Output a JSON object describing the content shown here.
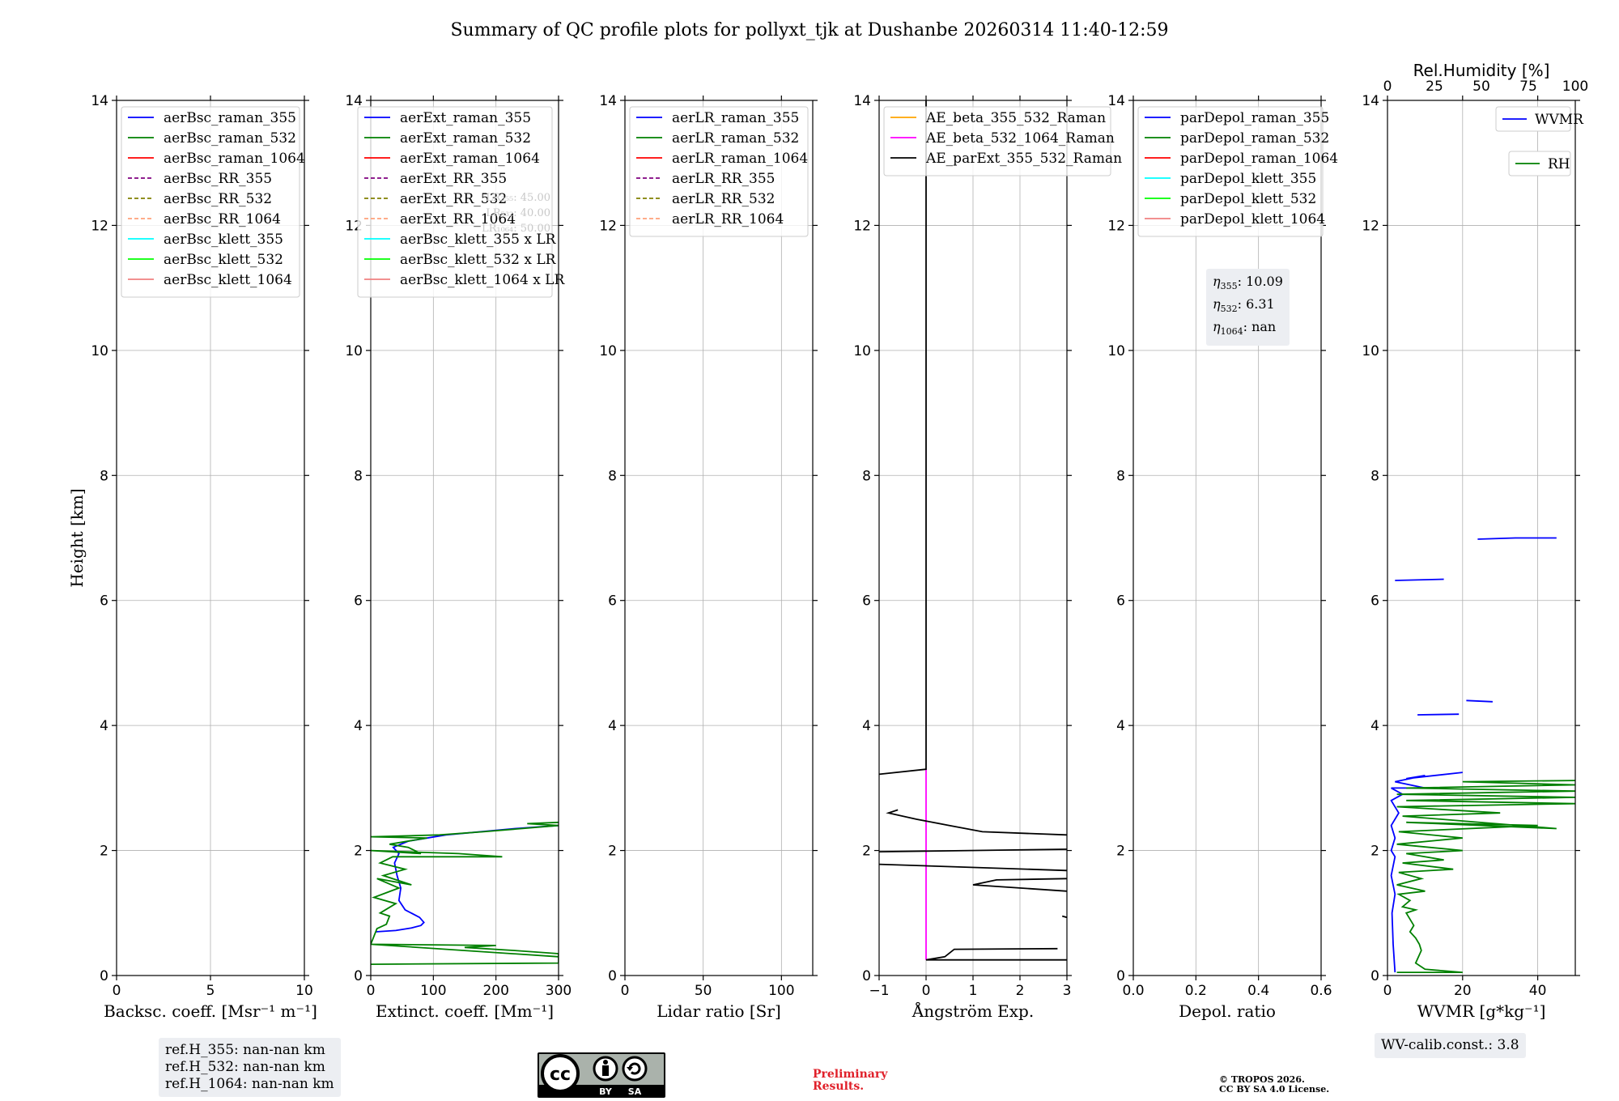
{
  "figure_title": "Summary of QC profile plots for pollyxt_tjk at Dushanbe 20260314 11:40-12:59",
  "colors": {
    "blue": "#0000ff",
    "green": "#008000",
    "red": "#ff0000",
    "purple": "#800080",
    "olive": "#808000",
    "salmon": "#ffa07a",
    "cyan": "#00ffff",
    "lime": "#00ff00",
    "lightred": "#f08080",
    "orange": "#ffa500",
    "magenta": "#ff00ff",
    "black": "#000000"
  },
  "chart_data": [
    {
      "id": "bsc",
      "type": "line",
      "xlabel": "Backsc. coeff. [Msr⁻¹ m⁻¹]",
      "ylabel": "Height [km]",
      "xlim": [
        0,
        10
      ],
      "ylim": [
        0,
        14
      ],
      "xticks": [
        0,
        5,
        10
      ],
      "yticks": [
        0,
        2,
        4,
        6,
        8,
        10,
        12,
        14
      ],
      "legend": {
        "loc": "top-left",
        "entries": [
          {
            "label": "aerBsc_raman_355",
            "color": "#0000ff",
            "dash": false
          },
          {
            "label": "aerBsc_raman_532",
            "color": "#008000",
            "dash": false
          },
          {
            "label": "aerBsc_raman_1064",
            "color": "#ff0000",
            "dash": false
          },
          {
            "label": "aerBsc_RR_355",
            "color": "#800080",
            "dash": true
          },
          {
            "label": "aerBsc_RR_532",
            "color": "#808000",
            "dash": true
          },
          {
            "label": "aerBsc_RR_1064",
            "color": "#ffa07a",
            "dash": true
          },
          {
            "label": "aerBsc_klett_355",
            "color": "#00ffff",
            "dash": false
          },
          {
            "label": "aerBsc_klett_532",
            "color": "#00ff00",
            "dash": false
          },
          {
            "label": "aerBsc_klett_1064",
            "color": "#f08080",
            "dash": false
          }
        ]
      },
      "series": []
    },
    {
      "id": "ext",
      "type": "line",
      "xlabel": "Extinct. coeff. [Mm⁻¹]",
      "xlim": [
        0,
        300
      ],
      "ylim": [
        0,
        14
      ],
      "xticks": [
        0,
        100,
        200,
        300
      ],
      "yticks": [
        0,
        2,
        4,
        6,
        8,
        10,
        12,
        14
      ],
      "legend": {
        "loc": "top-right",
        "entries": [
          {
            "label": "aerExt_raman_355",
            "color": "#0000ff",
            "dash": false
          },
          {
            "label": "aerExt_raman_532",
            "color": "#008000",
            "dash": false
          },
          {
            "label": "aerExt_raman_1064",
            "color": "#ff0000",
            "dash": false
          },
          {
            "label": "aerExt_RR_355",
            "color": "#800080",
            "dash": true
          },
          {
            "label": "aerExt_RR_532",
            "color": "#808000",
            "dash": true
          },
          {
            "label": "aerExt_RR_1064",
            "color": "#ffa07a",
            "dash": true
          },
          {
            "label": "aerBsc_klett_355 x LR",
            "color": "#00ffff",
            "dash": false
          },
          {
            "label": "aerBsc_klett_532 x LR",
            "color": "#00ff00",
            "dash": false
          },
          {
            "label": "aerBsc_klett_1064 x LR",
            "color": "#f08080",
            "dash": false
          }
        ]
      },
      "annotations": [
        "LR₃₅₅: 45.00",
        "LR₅₃₂: 40.00",
        "LR₁₀₆₄: 50.00"
      ],
      "series": [
        {
          "name": "aerExt_raman_355",
          "color": "#0000ff",
          "points": [
            [
              8,
              0.7
            ],
            [
              40,
              0.72
            ],
            [
              65,
              0.76
            ],
            [
              80,
              0.8
            ],
            [
              85,
              0.85
            ],
            [
              78,
              0.93
            ],
            [
              55,
              1.05
            ],
            [
              45,
              1.2
            ],
            [
              48,
              1.4
            ],
            [
              42,
              1.6
            ],
            [
              38,
              1.8
            ],
            [
              45,
              1.95
            ],
            [
              36,
              2.05
            ],
            [
              60,
              2.15
            ],
            [
              120,
              2.25
            ],
            [
              230,
              2.35
            ],
            [
              300,
              2.4
            ]
          ]
        },
        {
          "name": "aerExt_raman_532",
          "color": "#008000",
          "points": [
            [
              0,
              0.18
            ],
            [
              300,
              0.2
            ],
            [
              300,
              0.35
            ],
            [
              230,
              0.4
            ],
            [
              150,
              0.45
            ],
            [
              200,
              0.48
            ],
            [
              0,
              0.5
            ],
            [
              300,
              0.3
            ],
            [
              0,
              0.5
            ],
            [
              10,
              0.75
            ],
            [
              25,
              0.82
            ],
            [
              30,
              0.95
            ],
            [
              15,
              1.0
            ],
            [
              40,
              1.15
            ],
            [
              5,
              1.25
            ],
            [
              45,
              1.4
            ],
            [
              10,
              1.55
            ],
            [
              65,
              1.45
            ],
            [
              20,
              1.6
            ],
            [
              55,
              1.7
            ],
            [
              15,
              1.8
            ],
            [
              35,
              1.9
            ],
            [
              210,
              1.9
            ],
            [
              140,
              1.95
            ],
            [
              0,
              2.0
            ],
            [
              80,
              1.95
            ],
            [
              60,
              2.05
            ],
            [
              30,
              2.1
            ],
            [
              90,
              2.2
            ],
            [
              0,
              2.22
            ],
            [
              110,
              2.25
            ],
            [
              180,
              2.3
            ],
            [
              300,
              2.4
            ],
            [
              250,
              2.43
            ],
            [
              300,
              2.45
            ]
          ]
        }
      ]
    },
    {
      "id": "lr",
      "type": "line",
      "xlabel": "Lidar ratio [Sr]",
      "xlim": [
        0,
        120
      ],
      "ylim": [
        0,
        14
      ],
      "xticks": [
        0,
        50,
        100
      ],
      "yticks": [
        0,
        2,
        4,
        6,
        8,
        10,
        12,
        14
      ],
      "legend": {
        "loc": "top-right",
        "entries": [
          {
            "label": "aerLR_raman_355",
            "color": "#0000ff",
            "dash": false
          },
          {
            "label": "aerLR_raman_532",
            "color": "#008000",
            "dash": false
          },
          {
            "label": "aerLR_raman_1064",
            "color": "#ff0000",
            "dash": false
          },
          {
            "label": "aerLR_RR_355",
            "color": "#800080",
            "dash": true
          },
          {
            "label": "aerLR_RR_532",
            "color": "#808000",
            "dash": true
          },
          {
            "label": "aerLR_RR_1064",
            "color": "#ffa07a",
            "dash": true
          }
        ]
      },
      "series": []
    },
    {
      "id": "ae",
      "type": "line",
      "xlabel": "Ångström Exp.",
      "xlim": [
        -1,
        3
      ],
      "ylim": [
        0,
        14
      ],
      "xticks": [
        -1,
        0,
        1,
        2,
        3
      ],
      "xticklabels": [
        "−1",
        "0",
        "1",
        "2",
        "3"
      ],
      "yticks": [
        0,
        2,
        4,
        6,
        8,
        10,
        12,
        14
      ],
      "legend": {
        "loc": "top-left",
        "entries": [
          {
            "label": "AE_beta_355_532_Raman",
            "color": "#ffa500",
            "dash": false
          },
          {
            "label": "AE_beta_532_1064_Raman",
            "color": "#ff00ff",
            "dash": false
          },
          {
            "label": "AE_parExt_355_532_Raman",
            "color": "#000000",
            "dash": false
          }
        ]
      },
      "series": [
        {
          "name": "AE_beta_532_1064_Raman",
          "color": "#ff00ff",
          "points": [
            [
              0,
              0.25
            ],
            [
              0,
              3.3
            ]
          ]
        },
        {
          "name": "AE_parExt_355_532_Raman",
          "color": "#000000",
          "points": [
            [
              3.0,
              0.25
            ],
            [
              0,
              0.25
            ],
            [
              0.4,
              0.3
            ],
            [
              0.6,
              0.42
            ],
            [
              2.8,
              0.43
            ]
          ]
        },
        {
          "name": "AE_parExt_355_532_Raman b",
          "color": "#000000",
          "points": [
            [
              2.9,
              0.95
            ],
            [
              3.0,
              0.93
            ]
          ]
        },
        {
          "name": "AE_parExt_355_532_Raman c",
          "color": "#000000",
          "points": [
            [
              3.0,
              1.35
            ],
            [
              1.0,
              1.45
            ],
            [
              1.5,
              1.53
            ],
            [
              3.0,
              1.55
            ]
          ]
        },
        {
          "name": "AE_parExt_355_532_Raman d",
          "color": "#000000",
          "points": [
            [
              3.0,
              1.68
            ],
            [
              -1,
              1.78
            ]
          ]
        },
        {
          "name": "AE_parExt_355_532_Raman e",
          "color": "#000000",
          "points": [
            [
              -1,
              1.98
            ],
            [
              3.0,
              2.02
            ]
          ]
        },
        {
          "name": "AE_parExt_355_532_Raman f",
          "color": "#000000",
          "points": [
            [
              3.0,
              2.25
            ],
            [
              1.2,
              2.3
            ],
            [
              0.5,
              2.4
            ],
            [
              -0.2,
              2.5
            ],
            [
              -0.8,
              2.6
            ],
            [
              -0.6,
              2.65
            ]
          ]
        },
        {
          "name": "AE_parExt_355_532_Raman g",
          "color": "#000000",
          "points": [
            [
              -1,
              3.22
            ],
            [
              0,
              3.3
            ],
            [
              0,
              14
            ]
          ]
        }
      ]
    },
    {
      "id": "depol",
      "type": "line",
      "xlabel": "Depol. ratio",
      "xlim": [
        0,
        0.6
      ],
      "ylim": [
        0,
        14
      ],
      "xticks": [
        0,
        0.2,
        0.4,
        0.6
      ],
      "xticklabels": [
        "0.0",
        "0.2",
        "0.4",
        "0.6"
      ],
      "yticks": [
        0,
        2,
        4,
        6,
        8,
        10,
        12,
        14
      ],
      "legend": {
        "loc": "top-left",
        "entries": [
          {
            "label": "parDepol_raman_355",
            "color": "#0000ff",
            "dash": false
          },
          {
            "label": "parDepol_raman_532",
            "color": "#008000",
            "dash": false
          },
          {
            "label": "parDepol_raman_1064",
            "color": "#ff0000",
            "dash": false
          },
          {
            "label": "parDepol_klett_355",
            "color": "#00ffff",
            "dash": false
          },
          {
            "label": "parDepol_klett_532",
            "color": "#00ff00",
            "dash": false
          },
          {
            "label": "parDepol_klett_1064",
            "color": "#f08080",
            "dash": false
          }
        ]
      },
      "eta": {
        "eta355": "10.09",
        "eta532": "6.31",
        "eta1064": "nan"
      },
      "series": []
    },
    {
      "id": "wv",
      "type": "line",
      "xlabel": "WVMR [g*kg⁻¹]",
      "toplabel": "Rel.Humidity [%]",
      "xlim": [
        0,
        50
      ],
      "ylim": [
        0,
        14
      ],
      "xticks": [
        0,
        20,
        40
      ],
      "yticks": [
        0,
        2,
        4,
        6,
        8,
        10,
        12,
        14
      ],
      "top_xlim": [
        0,
        100
      ],
      "top_xticks": [
        0,
        25,
        50,
        75,
        100
      ],
      "legend": {
        "loc": "top-right",
        "entries": [
          {
            "label": "WVMR",
            "color": "#0000ff",
            "dash": false
          },
          {
            "label": "RH",
            "color": "#008000",
            "dash": false
          }
        ]
      },
      "series": [
        {
          "name": "WVMR",
          "color": "#0000ff",
          "points": [
            [
              2,
              0.05
            ],
            [
              1.5,
              0.5
            ],
            [
              1.2,
              1.0
            ],
            [
              2.0,
              1.3
            ],
            [
              1.0,
              1.6
            ],
            [
              2.0,
              1.9
            ],
            [
              1.0,
              2.0
            ],
            [
              2.0,
              2.2
            ],
            [
              1.0,
              2.4
            ],
            [
              3.0,
              2.6
            ],
            [
              1.0,
              2.8
            ],
            [
              4.0,
              2.9
            ],
            [
              1.0,
              3.0
            ],
            [
              10,
              3.0
            ],
            [
              2.0,
              3.1
            ],
            [
              10,
              3.2
            ],
            [
              5.0,
              3.15
            ],
            [
              20,
              3.25
            ]
          ]
        },
        {
          "name": "WVMR b",
          "color": "#0000ff",
          "points": [
            [
              8,
              4.17
            ],
            [
              19,
              4.18
            ]
          ]
        },
        {
          "name": "WVMR c",
          "color": "#0000ff",
          "points": [
            [
              21,
              4.4
            ],
            [
              28,
              4.38
            ]
          ]
        },
        {
          "name": "WVMR d",
          "color": "#0000ff",
          "points": [
            [
              2,
              6.32
            ],
            [
              15,
              6.34
            ]
          ]
        },
        {
          "name": "WVMR e",
          "color": "#0000ff",
          "points": [
            [
              24,
              6.98
            ],
            [
              34,
              7.0
            ],
            [
              45,
              7.0
            ]
          ]
        }
      ]
    }
  ],
  "rh_profile": {
    "xlim": [
      0,
      100
    ],
    "color": "#008000",
    "points": [
      [
        5,
        0.05
      ],
      [
        40,
        0.05
      ],
      [
        20,
        0.1
      ],
      [
        15,
        0.2
      ],
      [
        18,
        0.4
      ],
      [
        17,
        0.5
      ],
      [
        15,
        0.6
      ],
      [
        12,
        0.7
      ],
      [
        14,
        0.8
      ],
      [
        10,
        1.0
      ],
      [
        15,
        1.05
      ],
      [
        8,
        1.1
      ],
      [
        12,
        1.2
      ],
      [
        6,
        1.3
      ],
      [
        20,
        1.35
      ],
      [
        5,
        1.45
      ],
      [
        18,
        1.55
      ],
      [
        6,
        1.65
      ],
      [
        35,
        1.7
      ],
      [
        8,
        1.8
      ],
      [
        30,
        1.85
      ],
      [
        10,
        1.95
      ],
      [
        40,
        2.0
      ],
      [
        5,
        2.1
      ],
      [
        40,
        2.2
      ],
      [
        6,
        2.3
      ],
      [
        80,
        2.4
      ],
      [
        10,
        2.45
      ],
      [
        90,
        2.35
      ],
      [
        8,
        2.55
      ],
      [
        60,
        2.6
      ],
      [
        5,
        2.7
      ],
      [
        100,
        2.75
      ],
      [
        10,
        2.8
      ],
      [
        100,
        2.85
      ],
      [
        5,
        2.9
      ],
      [
        100,
        2.95
      ],
      [
        10,
        3.0
      ],
      [
        100,
        3.05
      ],
      [
        40,
        3.1
      ],
      [
        100,
        3.12
      ]
    ]
  },
  "ref_heights": [
    "ref.H_355: nan-nan km",
    "ref.H_532: nan-nan km",
    "ref.H_1064: nan-nan km"
  ],
  "wv_calib": "WV-calib.const.: 3.8",
  "preliminary": [
    "Preliminary",
    "Results."
  ],
  "copyright": [
    "© TROPOS 2026.",
    "CC BY SA 4.0 License."
  ],
  "license_badge": {
    "cc": "cc",
    "by": "BY",
    "sa": "SA"
  }
}
